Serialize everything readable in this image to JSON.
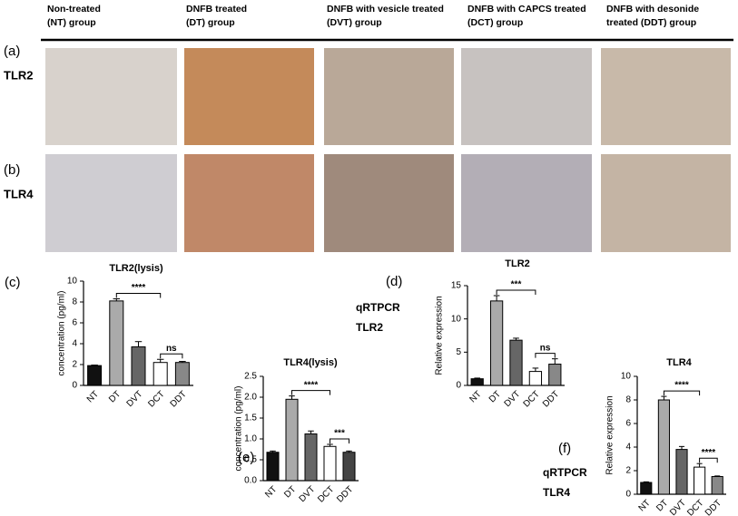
{
  "headers": [
    [
      "Non-treated",
      "(NT) group"
    ],
    [
      "DNFB treated",
      "(DT) group"
    ],
    [
      "DNFB with vesicle treated",
      "(DVT) group"
    ],
    [
      "DNFB with CAPCS treated",
      "(DCT) group"
    ],
    [
      "DNFB with desonide",
      "treated (DDT) group"
    ]
  ],
  "rows": [
    {
      "panel": "(a)",
      "label": "TLR2"
    },
    {
      "panel": "(b)",
      "label": "TLR4"
    }
  ],
  "chart_data": [
    {
      "type": "bar",
      "title": "TLR2(lysis)",
      "panel_label": "(c)",
      "y_label": "concentration (pg/ml)",
      "categories": [
        "NT",
        "DT",
        "DVT",
        "DCT",
        "DDT"
      ],
      "values": [
        1.9,
        8.1,
        3.7,
        2.2,
        2.2
      ],
      "errors": [
        0.05,
        0.2,
        0.5,
        0.3,
        0.1
      ],
      "colors": [
        "#111111",
        "#aaaaaa",
        "#666666",
        "#ffffff",
        "#888888"
      ],
      "ylim": [
        0,
        10
      ],
      "yticks": [
        0,
        2,
        4,
        6,
        8,
        10
      ],
      "annotations": [
        {
          "text": "****",
          "from": "DT",
          "to": "DCT"
        },
        {
          "text": "ns",
          "from": "DCT",
          "to": "DDT"
        }
      ]
    },
    {
      "type": "bar",
      "title": "TLR4(lysis)",
      "panel_label": "(e)",
      "y_label": "concentration (pg/ml)",
      "categories": [
        "NT",
        "DT",
        "DVT",
        "DCT",
        "DDT"
      ],
      "values": [
        0.68,
        1.95,
        1.12,
        0.82,
        0.68
      ],
      "errors": [
        0.03,
        0.08,
        0.07,
        0.05,
        0.03
      ],
      "colors": [
        "#111111",
        "#aaaaaa",
        "#666666",
        "#ffffff",
        "#444444"
      ],
      "ylim": [
        0,
        2.5
      ],
      "yticks": [
        {
          "value": 0,
          "label": "0.0"
        },
        0.5,
        {
          "value": 1,
          "label": "1.0"
        },
        1.5,
        {
          "value": 2,
          "label": "2.0"
        },
        2.5
      ],
      "annotations": [
        {
          "text": "****",
          "from": "DT",
          "to": "DCT"
        },
        {
          "text": "***",
          "from": "DCT",
          "to": "DDT"
        }
      ]
    },
    {
      "type": "bar",
      "title": "TLR2",
      "panel_label": "(d)",
      "note": [
        "qRTPCR",
        "TLR2"
      ],
      "y_label": "Relative expression",
      "categories": [
        "NT",
        "DT",
        "DVT",
        "DCT",
        "DDT"
      ],
      "values": [
        1.0,
        12.7,
        6.8,
        2.1,
        3.2
      ],
      "errors": [
        0.1,
        0.8,
        0.3,
        0.5,
        0.8
      ],
      "colors": [
        "#111111",
        "#aaaaaa",
        "#666666",
        "#ffffff",
        "#888888"
      ],
      "ylim": [
        0,
        15
      ],
      "yticks": [
        0,
        5,
        10,
        15
      ],
      "annotations": [
        {
          "text": "***",
          "from": "DT",
          "to": "DCT"
        },
        {
          "text": "ns",
          "from": "DCT",
          "to": "DDT"
        }
      ]
    },
    {
      "type": "bar",
      "title": "TLR4",
      "panel_label": "(f)",
      "note": [
        "qRTPCR",
        "TLR4"
      ],
      "y_label": "Relative expression",
      "categories": [
        "NT",
        "DT",
        "DVT",
        "DCT",
        "DDT"
      ],
      "values": [
        1.0,
        8.0,
        3.8,
        2.3,
        1.5
      ],
      "errors": [
        0.05,
        0.3,
        0.25,
        0.3,
        0.05
      ],
      "colors": [
        "#111111",
        "#aaaaaa",
        "#666666",
        "#ffffff",
        "#888888"
      ],
      "ylim": [
        0,
        10
      ],
      "yticks": [
        0,
        2,
        4,
        6,
        8,
        10
      ],
      "annotations": [
        {
          "text": "****",
          "from": "DT",
          "to": "DCT"
        },
        {
          "text": "****",
          "from": "DCT",
          "to": "DDT"
        }
      ]
    }
  ]
}
